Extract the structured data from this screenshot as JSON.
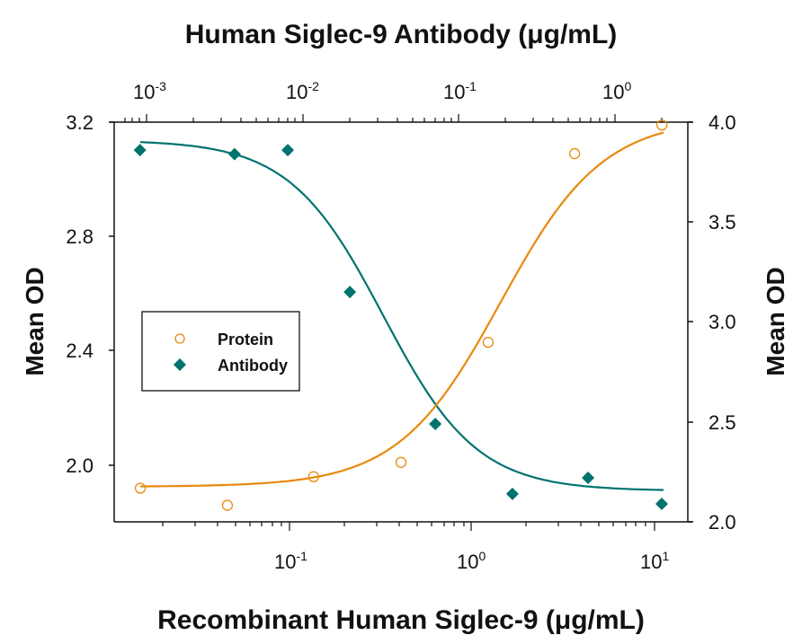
{
  "chart_data": {
    "type": "scatter",
    "title": "Human Siglec-9 Antibody (μg/mL)",
    "xlabel": "Recombinant Human Siglec-9 (μg/mL)",
    "x2label": "Human Siglec-9 Antibody (μg/mL)",
    "ylabel": "Mean OD",
    "y2label": "Mean OD",
    "xscale": "log",
    "x_ticks": [
      "10^-1",
      "10^0",
      "10^1"
    ],
    "x2_ticks": [
      "10^-3",
      "10^-2",
      "10^-1",
      "10^0"
    ],
    "y_ticks": [
      "2.0",
      "2.4",
      "2.8",
      "3.2"
    ],
    "y2_ticks": [
      "2.0",
      "2.5",
      "3.0",
      "3.5",
      "4.0"
    ],
    "ylim": [
      1.8,
      3.2
    ],
    "y2lim": [
      2.0,
      4.0
    ],
    "xlim": [
      0.01,
      16
    ],
    "x2lim": [
      0.00075,
      2.6
    ],
    "grid": false,
    "legend_position": "left-middle",
    "series": [
      {
        "name": "Protein",
        "axis": "bottom-left",
        "marker": "open-circle",
        "color": "#E8890C",
        "x": [
          0.0154,
          0.0462,
          0.137,
          0.413,
          1.24,
          3.69,
          11.1
        ],
        "y": [
          1.92,
          1.86,
          1.96,
          2.01,
          2.43,
          3.09,
          3.19
        ],
        "fit": "4PL sigmoid increasing"
      },
      {
        "name": "Antibody",
        "axis": "top-right",
        "marker": "filled-diamond",
        "color": "#00736E",
        "x": [
          0.00092,
          0.0037,
          0.0081,
          0.0202,
          0.071,
          0.221,
          0.673,
          1.99
        ],
        "y": [
          3.86,
          3.84,
          3.86,
          3.15,
          2.49,
          2.14,
          2.22,
          2.09
        ],
        "fit": "4PL sigmoid decreasing"
      }
    ]
  },
  "labels": {
    "top_title": "Human Siglec-9 Antibody (μg/mL)",
    "bottom_title": "Recombinant Human Siglec-9 (μg/mL)",
    "left_title": "Mean OD",
    "right_title": "Mean OD",
    "legend_protein": "Protein",
    "legend_antibody": "Antibody",
    "left_ticks": [
      "3.2",
      "2.8",
      "2.4",
      "2.0"
    ],
    "right_ticks": [
      "4.0",
      "3.5",
      "3.0",
      "2.5",
      "2.0"
    ],
    "top_tick_base": [
      "10",
      "10",
      "10",
      "10"
    ],
    "top_tick_exp": [
      "-3",
      "-2",
      "-1",
      "0"
    ],
    "bottom_tick_base": [
      "10",
      "10",
      "10"
    ],
    "bottom_tick_exp": [
      "-1",
      "0",
      "1"
    ]
  }
}
